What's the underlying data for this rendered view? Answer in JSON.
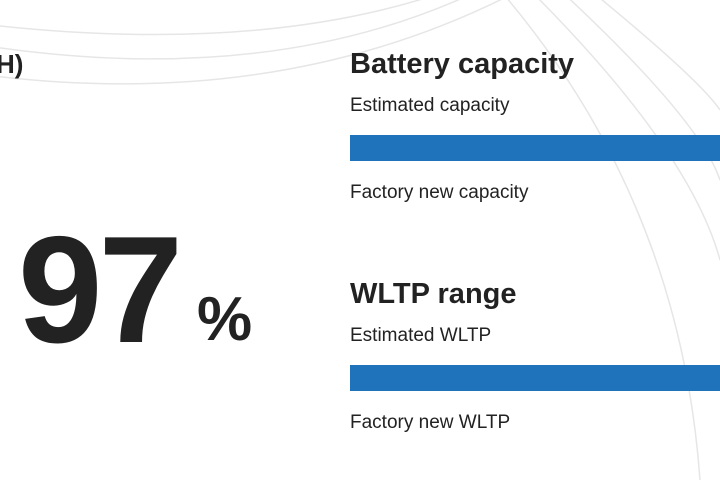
{
  "left": {
    "heading_fragment": "H)",
    "value": "97",
    "unit": "%"
  },
  "battery": {
    "title": "Battery capacity",
    "estimated_label": "Estimated capacity",
    "factory_label": "Factory new capacity"
  },
  "wltp": {
    "title": "WLTP range",
    "estimated_label": "Estimated WLTP",
    "factory_label": "Factory new WLTP"
  }
}
